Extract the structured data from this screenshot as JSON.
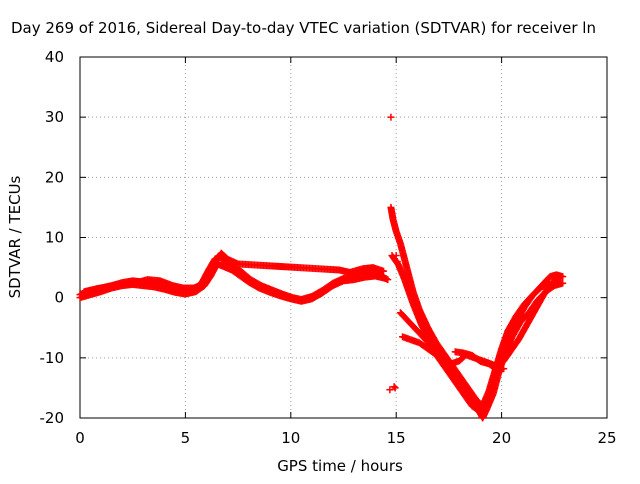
{
  "chart_data": {
    "type": "scatter",
    "title": "Day 269 of 2016, Sidereal Day-to-day VTEC variation (SDTVAR) for receiver ln",
    "xlabel": "GPS time / hours",
    "ylabel": "SDTVAR / TECUs",
    "xlim": [
      0,
      25
    ],
    "ylim": [
      -20,
      40
    ],
    "xticks": [
      0,
      5,
      10,
      15,
      20,
      25
    ],
    "yticks": [
      -20,
      -10,
      0,
      10,
      20,
      30,
      40
    ],
    "xtick_labels": [
      "0",
      "5",
      "10",
      "15",
      "20",
      "25"
    ],
    "ytick_labels": [
      "-20",
      "-10",
      "0",
      "10",
      "20",
      "30",
      "40"
    ],
    "grid": true,
    "legend": "none",
    "marker_color": "#ff0000",
    "series": [
      {
        "traces": [
          [
            [
              0.0,
              0.5
            ],
            [
              0.3,
              1.0
            ],
            [
              0.6,
              1.2
            ],
            [
              1.0,
              1.6
            ],
            [
              1.5,
              2.0
            ],
            [
              2.0,
              2.5
            ],
            [
              2.5,
              2.8
            ],
            [
              3.0,
              2.6
            ],
            [
              3.5,
              2.4
            ],
            [
              4.0,
              2.0
            ],
            [
              4.5,
              1.4
            ],
            [
              5.0,
              1.0
            ],
            [
              5.5,
              1.5
            ],
            [
              5.8,
              2.6
            ],
            [
              6.1,
              4.6
            ],
            [
              6.4,
              6.4
            ],
            [
              6.6,
              6.8
            ],
            [
              6.9,
              6.0
            ],
            [
              7.3,
              5.2
            ],
            [
              7.7,
              4.2
            ],
            [
              8.1,
              3.0
            ],
            [
              8.6,
              2.0
            ],
            [
              9.1,
              1.3
            ],
            [
              9.6,
              0.6
            ],
            [
              10.1,
              0.0
            ],
            [
              10.5,
              -0.3
            ],
            [
              11.0,
              0.2
            ],
            [
              11.5,
              1.2
            ],
            [
              12.0,
              2.4
            ],
            [
              12.5,
              3.2
            ],
            [
              13.0,
              3.6
            ],
            [
              13.5,
              4.0
            ],
            [
              14.0,
              4.2
            ],
            [
              14.3,
              3.5
            ],
            [
              14.6,
              3.0
            ]
          ],
          [
            [
              0.0,
              0.0
            ],
            [
              0.5,
              0.5
            ],
            [
              1.0,
              1.0
            ],
            [
              1.5,
              1.6
            ],
            [
              2.0,
              2.0
            ],
            [
              2.5,
              2.2
            ],
            [
              3.0,
              2.0
            ],
            [
              3.5,
              1.8
            ],
            [
              4.0,
              1.4
            ],
            [
              4.5,
              0.9
            ],
            [
              5.0,
              0.6
            ],
            [
              5.5,
              1.0
            ],
            [
              5.9,
              2.0
            ],
            [
              6.2,
              3.6
            ],
            [
              6.5,
              5.6
            ],
            [
              6.8,
              5.2
            ],
            [
              7.2,
              4.6
            ],
            [
              7.6,
              3.6
            ],
            [
              8.0,
              2.6
            ],
            [
              8.5,
              1.6
            ],
            [
              9.0,
              0.9
            ],
            [
              9.5,
              0.3
            ],
            [
              10.0,
              -0.2
            ],
            [
              10.5,
              -0.6
            ],
            [
              11.0,
              -0.2
            ],
            [
              11.5,
              0.8
            ],
            [
              12.0,
              2.0
            ],
            [
              12.5,
              2.8
            ],
            [
              13.0,
              3.0
            ],
            [
              13.5,
              3.4
            ],
            [
              14.0,
              3.6
            ],
            [
              14.5,
              3.2
            ]
          ],
          [
            [
              0.2,
              1.0
            ],
            [
              0.8,
              1.5
            ],
            [
              1.3,
              1.8
            ],
            [
              2.2,
              2.4
            ],
            [
              2.8,
              2.6
            ],
            [
              3.2,
              3.0
            ],
            [
              3.8,
              2.8
            ],
            [
              4.4,
              2.0
            ],
            [
              4.9,
              1.6
            ],
            [
              5.4,
              1.6
            ],
            [
              5.8,
              2.2
            ],
            [
              6.3,
              5.2
            ],
            [
              6.7,
              7.4
            ],
            [
              7.0,
              6.4
            ],
            [
              7.5,
              5.6
            ],
            [
              12.3,
              4.6
            ],
            [
              12.8,
              4.2
            ],
            [
              13.4,
              4.8
            ],
            [
              13.9,
              5.0
            ],
            [
              14.4,
              4.4
            ]
          ],
          [
            [
              14.75,
              15.0
            ],
            [
              14.85,
              13.0
            ],
            [
              15.0,
              11.0
            ],
            [
              15.2,
              9.0
            ],
            [
              15.5,
              5.0
            ],
            [
              15.8,
              1.0
            ],
            [
              16.1,
              -2.0
            ],
            [
              16.5,
              -5.0
            ],
            [
              16.9,
              -7.5
            ],
            [
              17.3,
              -9.5
            ],
            [
              17.7,
              -11.5
            ],
            [
              18.1,
              -13.5
            ],
            [
              18.5,
              -15.5
            ],
            [
              18.8,
              -17.0
            ],
            [
              19.1,
              -18.0
            ],
            [
              19.4,
              -15.5
            ],
            [
              19.7,
              -12.0
            ],
            [
              20.0,
              -8.5
            ],
            [
              20.3,
              -5.5
            ],
            [
              20.7,
              -3.0
            ],
            [
              21.1,
              -1.0
            ],
            [
              21.5,
              0.5
            ],
            [
              21.9,
              2.0
            ],
            [
              22.3,
              3.5
            ],
            [
              22.6,
              3.8
            ],
            [
              22.9,
              3.5
            ]
          ],
          [
            [
              14.8,
              7.0
            ],
            [
              15.1,
              5.5
            ],
            [
              15.4,
              3.0
            ],
            [
              15.8,
              -1.0
            ],
            [
              16.2,
              -4.5
            ],
            [
              16.6,
              -7.5
            ],
            [
              17.0,
              -10.0
            ],
            [
              17.4,
              -12.0
            ],
            [
              17.8,
              -14.0
            ],
            [
              18.2,
              -16.0
            ],
            [
              18.6,
              -18.0
            ],
            [
              19.0,
              -19.0
            ],
            [
              19.3,
              -17.5
            ],
            [
              19.6,
              -14.0
            ],
            [
              19.9,
              -10.5
            ],
            [
              20.3,
              -7.0
            ],
            [
              20.7,
              -4.0
            ],
            [
              21.1,
              -1.5
            ],
            [
              21.5,
              0.5
            ],
            [
              21.9,
              1.8
            ],
            [
              22.3,
              2.2
            ],
            [
              22.8,
              2.4
            ]
          ],
          [
            [
              15.2,
              -2.5
            ],
            [
              15.6,
              -4.0
            ],
            [
              16.0,
              -5.5
            ],
            [
              16.4,
              -7.0
            ],
            [
              16.8,
              -8.5
            ],
            [
              17.2,
              -10.0
            ],
            [
              17.6,
              -11.5
            ],
            [
              18.0,
              -13.5
            ],
            [
              18.4,
              -15.5
            ],
            [
              18.8,
              -18.0
            ],
            [
              19.1,
              -20.0
            ],
            [
              19.3,
              -18.5
            ],
            [
              19.6,
              -16.0
            ],
            [
              19.9,
              -12.0
            ],
            [
              20.2,
              -9.0
            ],
            [
              20.5,
              -6.5
            ],
            [
              20.9,
              -4.0
            ],
            [
              21.3,
              -2.5
            ],
            [
              21.7,
              -0.5
            ],
            [
              22.1,
              1.0
            ],
            [
              22.5,
              2.0
            ],
            [
              22.9,
              2.4
            ]
          ],
          [
            [
              15.3,
              -6.5
            ],
            [
              15.7,
              -7.0
            ],
            [
              16.1,
              -7.5
            ],
            [
              16.5,
              -8.5
            ],
            [
              16.9,
              -9.5
            ],
            [
              17.3,
              -10.5
            ],
            [
              17.6,
              -11.0
            ],
            [
              18.0,
              -10.5
            ],
            [
              18.3,
              -9.5
            ],
            [
              18.7,
              -10.0
            ],
            [
              19.1,
              -10.5
            ],
            [
              19.5,
              -11.0
            ],
            [
              19.8,
              -11.5
            ],
            [
              20.1,
              -10.5
            ],
            [
              20.4,
              -9.0
            ],
            [
              20.8,
              -7.0
            ],
            [
              21.2,
              -4.5
            ],
            [
              21.6,
              -2.0
            ],
            [
              22.0,
              0.5
            ],
            [
              22.4,
              2.5
            ],
            [
              22.8,
              3.5
            ]
          ],
          [
            [
              17.8,
              -9.0
            ],
            [
              18.2,
              -9.2
            ],
            [
              18.6,
              -9.6
            ],
            [
              19.0,
              -10.6
            ],
            [
              19.4,
              -11.0
            ],
            [
              19.8,
              -12.0
            ],
            [
              20.1,
              -11.8
            ]
          ]
        ],
        "isolated_points": [
          [
            14.75,
            30.0
          ],
          [
            14.7,
            -15.3
          ],
          [
            14.9,
            -14.8
          ],
          [
            14.95,
            -15.0
          ],
          [
            15.0,
            7.0
          ],
          [
            15.05,
            6.0
          ]
        ]
      }
    ]
  }
}
